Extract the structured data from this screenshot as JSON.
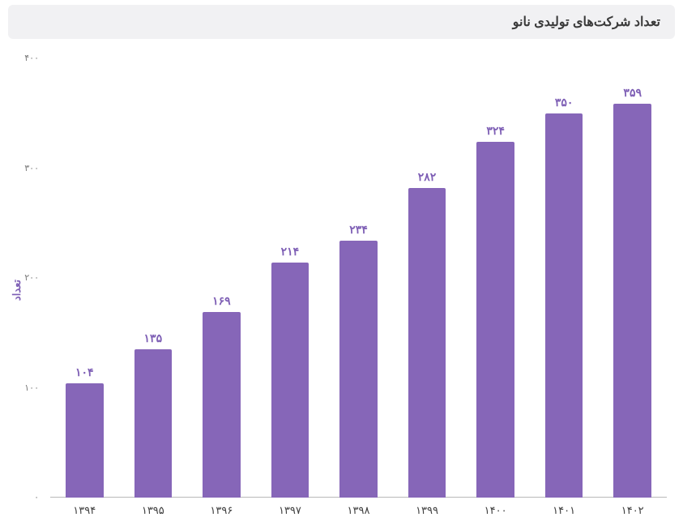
{
  "chart": {
    "type": "bar",
    "title": "تعداد شرکت‌های تولیدی نانو",
    "title_fontsize": 16,
    "title_color": "#3a3a3a",
    "title_bg": "#f1f1f3",
    "ylabel": "تعداد",
    "ylabel_color": "#7e5fb5",
    "ylabel_fontsize": 13,
    "background_color": "#ffffff",
    "axis_line_color": "#b8b8b8",
    "tick_label_color": "#7a7a7a",
    "x_tick_label_color": "#404040",
    "value_label_color": "#7e5fb5",
    "value_label_fontsize": 14,
    "tick_fontsize": 11,
    "x_tick_fontsize": 13,
    "ylim": [
      0,
      400
    ],
    "ytick_step": 100,
    "yticks": [
      0,
      100,
      200,
      300,
      400
    ],
    "ytick_labels_fa": [
      "۰",
      "۱۰۰",
      "۲۰۰",
      "۳۰۰",
      "۴۰۰"
    ],
    "categories_fa": [
      "۱۳۹۴",
      "۱۳۹۵",
      "۱۳۹۶",
      "۱۳۹۷",
      "۱۳۹۸",
      "۱۳۹۹",
      "۱۴۰۰",
      "۱۴۰۱",
      "۱۴۰۲"
    ],
    "categories_num": [
      1394,
      1395,
      1396,
      1397,
      1398,
      1399,
      1400,
      1401,
      1402
    ],
    "values": [
      104,
      135,
      169,
      214,
      234,
      282,
      324,
      350,
      359
    ],
    "values_fa": [
      "۱۰۴",
      "۱۳۵",
      "۱۶۹",
      "۲۱۴",
      "۲۳۴",
      "۲۸۲",
      "۳۲۴",
      "۳۵۰",
      "۳۵۹"
    ],
    "bar_color": "#8666b8",
    "bar_width_ratio": 0.55,
    "grid": false
  }
}
